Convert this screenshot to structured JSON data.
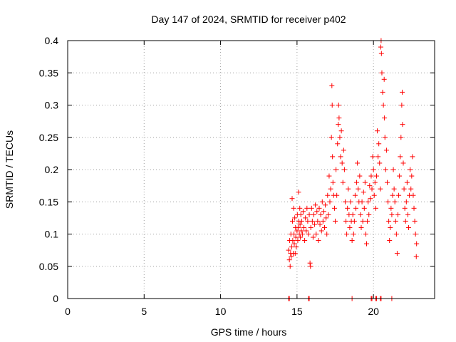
{
  "chart_data": {
    "type": "scatter",
    "title": "Day 147 of 2024, SRMTID for receiver p402",
    "xlabel": "GPS time / hours",
    "ylabel": "SRMTID / TECUs",
    "xlim": [
      0,
      24
    ],
    "ylim": [
      0,
      0.4
    ],
    "xticks": [
      0,
      5,
      10,
      15,
      20
    ],
    "xtick_labels": [
      "0",
      "5",
      "10",
      "15",
      "20"
    ],
    "yticks": [
      0,
      0.05,
      0.1,
      0.15,
      0.2,
      0.25,
      0.3,
      0.35,
      0.4
    ],
    "ytick_labels": [
      "0",
      "0.05",
      "0.1",
      "0.15",
      "0.2",
      "0.25",
      "0.3",
      "0.35",
      "0.4"
    ],
    "grid": true,
    "marker": "plus",
    "color": "#ff0000",
    "series": [
      {
        "name": "SRMTID",
        "points": [
          [
            14.45,
            0.075
          ],
          [
            14.5,
            0.06
          ],
          [
            14.52,
            0.09
          ],
          [
            14.55,
            0.05
          ],
          [
            14.58,
            0.07
          ],
          [
            14.6,
            0.1
          ],
          [
            14.62,
            0.065
          ],
          [
            14.65,
            0.08
          ],
          [
            14.68,
            0.155
          ],
          [
            14.7,
            0.12
          ],
          [
            14.72,
            0.09
          ],
          [
            14.75,
            0.07
          ],
          [
            14.78,
            0.14
          ],
          [
            14.8,
            0.1
          ],
          [
            14.82,
            0.085
          ],
          [
            14.85,
            0.125
          ],
          [
            14.88,
            0.07
          ],
          [
            14.9,
            0.11
          ],
          [
            14.92,
            0.095
          ],
          [
            14.95,
            0.08
          ],
          [
            15.0,
            0.105
          ],
          [
            15.02,
            0.13
          ],
          [
            15.05,
            0.09
          ],
          [
            15.08,
            0.11
          ],
          [
            15.1,
            0.165
          ],
          [
            15.12,
            0.12
          ],
          [
            15.15,
            0.1
          ],
          [
            15.18,
            0.14
          ],
          [
            15.2,
            0.115
          ],
          [
            15.22,
            0.095
          ],
          [
            15.25,
            0.13
          ],
          [
            15.28,
            0.105
          ],
          [
            15.3,
            0.12
          ],
          [
            15.35,
            0.1
          ],
          [
            15.4,
            0.135
          ],
          [
            15.45,
            0.11
          ],
          [
            15.5,
            0.09
          ],
          [
            15.55,
            0.125
          ],
          [
            15.6,
            0.105
          ],
          [
            15.65,
            0.14
          ],
          [
            15.7,
            0.12
          ],
          [
            15.75,
            0.1
          ],
          [
            15.8,
            0.13
          ],
          [
            15.85,
            0.055
          ],
          [
            15.88,
            0.05
          ],
          [
            15.9,
            0.11
          ],
          [
            15.95,
            0.14
          ],
          [
            16.0,
            0.12
          ],
          [
            16.05,
            0.095
          ],
          [
            16.1,
            0.13
          ],
          [
            16.15,
            0.115
          ],
          [
            16.2,
            0.145
          ],
          [
            16.25,
            0.1
          ],
          [
            16.3,
            0.135
          ],
          [
            16.35,
            0.12
          ],
          [
            16.4,
            0.09
          ],
          [
            16.45,
            0.14
          ],
          [
            16.5,
            0.115
          ],
          [
            16.55,
            0.13
          ],
          [
            16.6,
            0.105
          ],
          [
            16.65,
            0.15
          ],
          [
            16.7,
            0.12
          ],
          [
            16.75,
            0.135
          ],
          [
            16.8,
            0.11
          ],
          [
            16.85,
            0.145
          ],
          [
            16.9,
            0.125
          ],
          [
            16.95,
            0.1
          ],
          [
            17.0,
            0.16
          ],
          [
            17.05,
            0.13
          ],
          [
            17.1,
            0.19
          ],
          [
            17.15,
            0.15
          ],
          [
            17.2,
            0.17
          ],
          [
            17.25,
            0.25
          ],
          [
            17.28,
            0.33
          ],
          [
            17.3,
            0.3
          ],
          [
            17.32,
            0.22
          ],
          [
            17.35,
            0.18
          ],
          [
            17.4,
            0.16
          ],
          [
            17.45,
            0.14
          ],
          [
            17.5,
            0.12
          ],
          [
            17.55,
            0.2
          ],
          [
            17.6,
            0.16
          ],
          [
            17.65,
            0.24
          ],
          [
            17.7,
            0.27
          ],
          [
            17.72,
            0.3
          ],
          [
            17.75,
            0.28
          ],
          [
            17.8,
            0.25
          ],
          [
            17.85,
            0.22
          ],
          [
            17.9,
            0.26
          ],
          [
            17.95,
            0.21
          ],
          [
            18.0,
            0.18
          ],
          [
            18.05,
            0.23
          ],
          [
            18.1,
            0.2
          ],
          [
            18.15,
            0.15
          ],
          [
            18.2,
            0.12
          ],
          [
            18.25,
            0.1
          ],
          [
            18.3,
            0.14
          ],
          [
            18.35,
            0.17
          ],
          [
            18.4,
            0.13
          ],
          [
            18.45,
            0.11
          ],
          [
            18.5,
            0.15
          ],
          [
            18.55,
            0.12
          ],
          [
            18.6,
            0.09
          ],
          [
            18.65,
            0.13
          ],
          [
            18.7,
            0.1
          ],
          [
            18.75,
            0.12
          ],
          [
            18.8,
            0.16
          ],
          [
            18.85,
            0.14
          ],
          [
            18.9,
            0.18
          ],
          [
            18.95,
            0.21
          ],
          [
            19.0,
            0.17
          ],
          [
            19.05,
            0.15
          ],
          [
            19.1,
            0.19
          ],
          [
            19.15,
            0.13
          ],
          [
            19.2,
            0.11
          ],
          [
            19.25,
            0.15
          ],
          [
            19.3,
            0.12
          ],
          [
            19.35,
            0.165
          ],
          [
            19.4,
            0.14
          ],
          [
            19.45,
            0.18
          ],
          [
            19.5,
            0.1
          ],
          [
            19.55,
            0.085
          ],
          [
            19.6,
            0.12
          ],
          [
            19.65,
            0.15
          ],
          [
            19.7,
            0.13
          ],
          [
            19.75,
            0.175
          ],
          [
            19.8,
            0.155
          ],
          [
            19.85,
            0.19
          ],
          [
            19.9,
            0.17
          ],
          [
            19.95,
            0.22
          ],
          [
            20.0,
            0.2
          ],
          [
            20.05,
            0.16
          ],
          [
            20.1,
            0.18
          ],
          [
            20.15,
            0.14
          ],
          [
            20.2,
            0.19
          ],
          [
            20.25,
            0.26
          ],
          [
            20.3,
            0.22
          ],
          [
            20.35,
            0.24
          ],
          [
            20.4,
            0.21
          ],
          [
            20.45,
            0.17
          ],
          [
            20.48,
            0.39
          ],
          [
            20.5,
            0.4
          ],
          [
            20.52,
            0.38
          ],
          [
            20.55,
            0.35
          ],
          [
            20.6,
            0.32
          ],
          [
            20.65,
            0.3
          ],
          [
            20.7,
            0.34
          ],
          [
            20.72,
            0.28
          ],
          [
            20.75,
            0.25
          ],
          [
            20.8,
            0.2
          ],
          [
            20.85,
            0.23
          ],
          [
            20.9,
            0.18
          ],
          [
            20.95,
            0.15
          ],
          [
            21.0,
            0.12
          ],
          [
            21.05,
            0.09
          ],
          [
            21.1,
            0.11
          ],
          [
            21.15,
            0.14
          ],
          [
            21.2,
            0.13
          ],
          [
            21.25,
            0.16
          ],
          [
            21.3,
            0.2
          ],
          [
            21.35,
            0.17
          ],
          [
            21.4,
            0.15
          ],
          [
            21.45,
            0.12
          ],
          [
            21.5,
            0.1
          ],
          [
            21.55,
            0.07
          ],
          [
            21.6,
            0.13
          ],
          [
            21.65,
            0.16
          ],
          [
            21.7,
            0.19
          ],
          [
            21.75,
            0.22
          ],
          [
            21.8,
            0.25
          ],
          [
            21.85,
            0.3
          ],
          [
            21.88,
            0.32
          ],
          [
            21.9,
            0.27
          ],
          [
            21.95,
            0.21
          ],
          [
            22.0,
            0.17
          ],
          [
            22.05,
            0.14
          ],
          [
            22.1,
            0.12
          ],
          [
            22.15,
            0.15
          ],
          [
            22.2,
            0.18
          ],
          [
            22.25,
            0.13
          ],
          [
            22.3,
            0.11
          ],
          [
            22.35,
            0.16
          ],
          [
            22.4,
            0.2
          ],
          [
            22.45,
            0.17
          ],
          [
            22.5,
            0.19
          ],
          [
            22.55,
            0.22
          ],
          [
            22.6,
            0.16
          ],
          [
            22.65,
            0.14
          ],
          [
            22.7,
            0.12
          ],
          [
            22.75,
            0.1
          ],
          [
            22.8,
            0.065
          ],
          [
            22.82,
            0.085
          ]
        ]
      },
      {
        "name": "zero values",
        "points": [
          [
            14.45,
            0
          ],
          [
            14.5,
            0
          ],
          [
            15.75,
            0
          ],
          [
            15.8,
            0
          ],
          [
            18.6,
            0
          ],
          [
            19.85,
            0
          ],
          [
            19.9,
            0
          ],
          [
            20.15,
            0
          ],
          [
            20.2,
            0
          ],
          [
            20.45,
            0
          ],
          [
            20.5,
            0
          ],
          [
            21.2,
            0
          ]
        ]
      }
    ]
  }
}
